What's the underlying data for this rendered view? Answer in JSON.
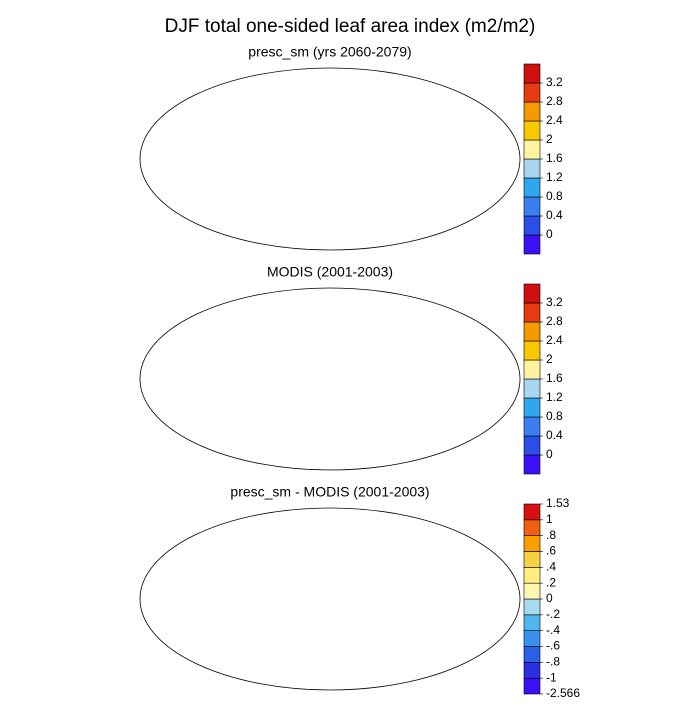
{
  "title": "DJF total one-sided leaf area index (m2/m2)",
  "panels": [
    {
      "title": "presc_sm (yrs 2060-2079)",
      "colorbar": {
        "colors": [
          "#3c10f5",
          "#2a4ee6",
          "#3a7ef0",
          "#30a6f0",
          "#a8d6f0",
          "#fff3a0",
          "#f8c800",
          "#f59a00",
          "#e83a10",
          "#d01010"
        ],
        "ticks": [
          0,
          0.4,
          0.8,
          1.2,
          1.6,
          2,
          2.4,
          2.8,
          3.2
        ]
      }
    },
    {
      "title": "MODIS (2001-2003)",
      "colorbar": {
        "colors": [
          "#3c10f5",
          "#2a4ee6",
          "#3a7ef0",
          "#30a6f0",
          "#a8d6f0",
          "#fff3a0",
          "#f8c800",
          "#f59a00",
          "#e83a10",
          "#d01010"
        ],
        "ticks": [
          0,
          0.4,
          0.8,
          1.2,
          1.6,
          2,
          2.4,
          2.8,
          3.2
        ]
      }
    },
    {
      "title": "presc_sm - MODIS (2001-2003)",
      "colorbar": {
        "colors": [
          "#3c10f5",
          "#2a30e0",
          "#2a60e8",
          "#3a90f0",
          "#50b8f0",
          "#a8daf0",
          "#fff7b0",
          "#fff080",
          "#f8d040",
          "#f8a000",
          "#f06010",
          "#d81010"
        ],
        "ticks": [
          -2.566,
          -1,
          {
            "value": -0.8,
            "label": "-.8"
          },
          {
            "value": -0.6,
            "label": "-.6"
          },
          {
            "value": -0.4,
            "label": "-.4"
          },
          {
            "value": -0.2,
            "label": "-.2"
          },
          0,
          {
            "value": 0.2,
            "label": ".2"
          },
          {
            "value": 0.4,
            "label": ".4"
          },
          {
            "value": 0.6,
            "label": ".6"
          },
          {
            "value": 0.8,
            "label": ".8"
          },
          1,
          1.53
        ]
      }
    }
  ]
}
